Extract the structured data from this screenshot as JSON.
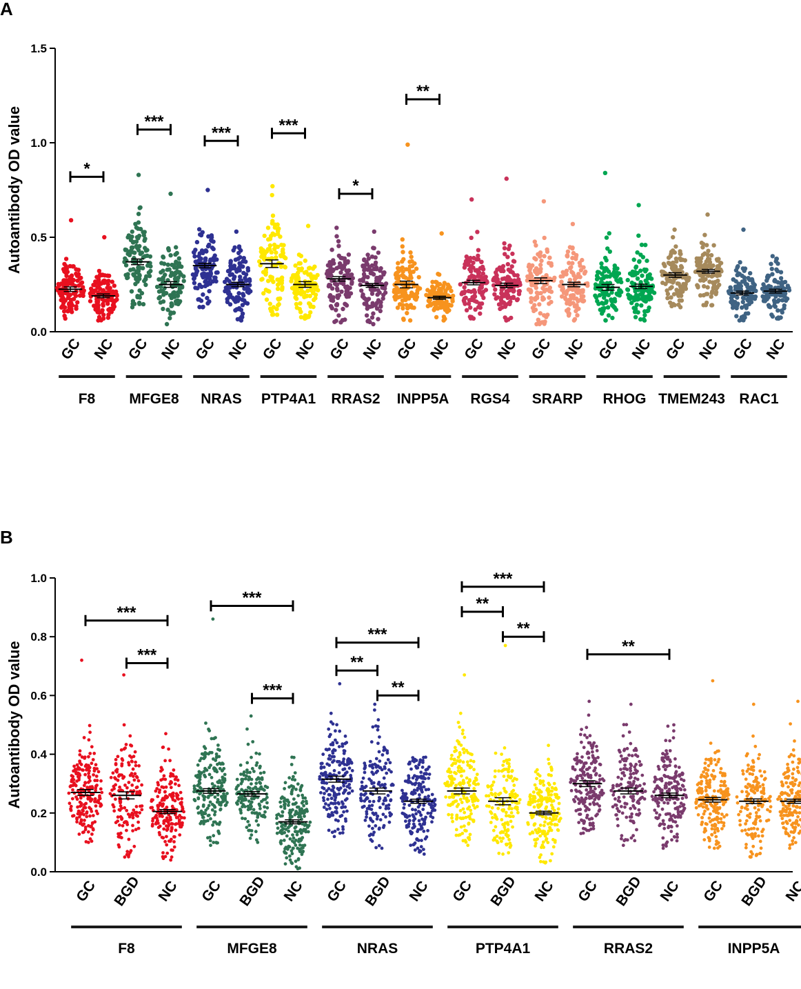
{
  "chart_data": [
    {
      "panel": "A",
      "type": "scatter",
      "subtype": "dot-plot-mean-sem",
      "ylabel": "Autoantibody OD value",
      "ylim": [
        0,
        1.5
      ],
      "yticks": [
        "0.0",
        "0.5",
        "1.0",
        "1.5"
      ],
      "group_labels": [
        "GC",
        "NC"
      ],
      "genes": [
        {
          "name": "F8",
          "color": "#e8101f",
          "groups": [
            {
              "label": "GC",
              "mean": 0.225,
              "sem": 0.012,
              "min": 0.07,
              "max": 0.59,
              "n": 110
            },
            {
              "label": "NC",
              "mean": 0.19,
              "sem": 0.01,
              "min": 0.06,
              "max": 0.5,
              "n": 110
            }
          ]
        },
        {
          "name": "MFGE8",
          "color": "#2f7453",
          "groups": [
            {
              "label": "GC",
              "mean": 0.37,
              "sem": 0.015,
              "min": 0.13,
              "max": 0.83,
              "n": 110
            },
            {
              "label": "NC",
              "mean": 0.25,
              "sem": 0.015,
              "min": 0.04,
              "max": 0.73,
              "n": 110
            }
          ]
        },
        {
          "name": "NRAS",
          "color": "#2e3192",
          "groups": [
            {
              "label": "GC",
              "mean": 0.35,
              "sem": 0.012,
              "min": 0.13,
              "max": 0.75,
              "n": 110
            },
            {
              "label": "NC",
              "mean": 0.25,
              "sem": 0.012,
              "min": 0.06,
              "max": 0.53,
              "n": 110
            }
          ]
        },
        {
          "name": "PTP4A1",
          "color": "#ffe800",
          "groups": [
            {
              "label": "GC",
              "mean": 0.36,
              "sem": 0.02,
              "min": 0.09,
              "max": 0.77,
              "n": 110
            },
            {
              "label": "NC",
              "mean": 0.25,
              "sem": 0.015,
              "min": 0.07,
              "max": 0.56,
              "n": 110
            }
          ]
        },
        {
          "name": "RRAS2",
          "color": "#7a3b6d",
          "groups": [
            {
              "label": "GC",
              "mean": 0.28,
              "sem": 0.012,
              "min": 0.05,
              "max": 0.55,
              "n": 110
            },
            {
              "label": "NC",
              "mean": 0.245,
              "sem": 0.01,
              "min": 0.04,
              "max": 0.53,
              "n": 110
            }
          ]
        },
        {
          "name": "INPP5A",
          "color": "#f7931e",
          "groups": [
            {
              "label": "GC",
              "mean": 0.25,
              "sem": 0.018,
              "min": 0.06,
              "max": 0.99,
              "n": 110
            },
            {
              "label": "NC",
              "mean": 0.18,
              "sem": 0.008,
              "min": 0.06,
              "max": 0.52,
              "n": 110
            }
          ]
        },
        {
          "name": "RGS4",
          "color": "#c9325a",
          "groups": [
            {
              "label": "GC",
              "mean": 0.26,
              "sem": 0.012,
              "min": 0.07,
              "max": 0.7,
              "n": 110
            },
            {
              "label": "NC",
              "mean": 0.245,
              "sem": 0.012,
              "min": 0.06,
              "max": 0.81,
              "n": 110
            }
          ]
        },
        {
          "name": "SRARP",
          "color": "#f5977a",
          "groups": [
            {
              "label": "GC",
              "mean": 0.27,
              "sem": 0.015,
              "min": 0.04,
              "max": 0.69,
              "n": 110
            },
            {
              "label": "NC",
              "mean": 0.25,
              "sem": 0.012,
              "min": 0.06,
              "max": 0.57,
              "n": 110
            }
          ]
        },
        {
          "name": "RHOG",
          "color": "#00a651",
          "groups": [
            {
              "label": "GC",
              "mean": 0.235,
              "sem": 0.015,
              "min": 0.06,
              "max": 0.84,
              "n": 110
            },
            {
              "label": "NC",
              "mean": 0.24,
              "sem": 0.012,
              "min": 0.06,
              "max": 0.67,
              "n": 110
            }
          ]
        },
        {
          "name": "TMEM243",
          "color": "#a68a5c",
          "groups": [
            {
              "label": "GC",
              "mean": 0.3,
              "sem": 0.012,
              "min": 0.13,
              "max": 0.54,
              "n": 110
            },
            {
              "label": "NC",
              "mean": 0.32,
              "sem": 0.01,
              "min": 0.14,
              "max": 0.62,
              "n": 110
            }
          ]
        },
        {
          "name": "RAC1",
          "color": "#3f6383",
          "groups": [
            {
              "label": "GC",
              "mean": 0.205,
              "sem": 0.01,
              "min": 0.06,
              "max": 0.54,
              "n": 110
            },
            {
              "label": "NC",
              "mean": 0.215,
              "sem": 0.01,
              "min": 0.07,
              "max": 0.4,
              "n": 110
            }
          ]
        }
      ],
      "comparisons": [
        {
          "gene": "F8",
          "from": "GC",
          "to": "NC",
          "y": 0.82,
          "label": "*"
        },
        {
          "gene": "MFGE8",
          "from": "GC",
          "to": "NC",
          "y": 1.07,
          "label": "***"
        },
        {
          "gene": "NRAS",
          "from": "GC",
          "to": "NC",
          "y": 1.01,
          "label": "***"
        },
        {
          "gene": "PTP4A1",
          "from": "GC",
          "to": "NC",
          "y": 1.05,
          "label": "***"
        },
        {
          "gene": "RRAS2",
          "from": "GC",
          "to": "NC",
          "y": 0.73,
          "label": "*"
        },
        {
          "gene": "INPP5A",
          "from": "GC",
          "to": "NC",
          "y": 1.23,
          "label": "**"
        }
      ]
    },
    {
      "panel": "B",
      "type": "scatter",
      "subtype": "dot-plot-mean-sem",
      "ylabel": "Autoantibody OD value",
      "ylim": [
        0,
        1.0
      ],
      "yticks": [
        "0.0",
        "0.2",
        "0.4",
        "0.6",
        "0.8",
        "1.0"
      ],
      "group_labels": [
        "GC",
        "BGD",
        "NC"
      ],
      "genes": [
        {
          "name": "F8",
          "color": "#e8101f",
          "groups": [
            {
              "label": "GC",
              "mean": 0.27,
              "sem": 0.01,
              "min": 0.1,
              "max": 0.72,
              "n": 200
            },
            {
              "label": "BGD",
              "mean": 0.26,
              "sem": 0.012,
              "min": 0.05,
              "max": 0.67,
              "n": 150
            },
            {
              "label": "NC",
              "mean": 0.205,
              "sem": 0.007,
              "min": 0.04,
              "max": 0.47,
              "n": 200
            }
          ]
        },
        {
          "name": "MFGE8",
          "color": "#2f7453",
          "groups": [
            {
              "label": "GC",
              "mean": 0.275,
              "sem": 0.008,
              "min": 0.09,
              "max": 0.86,
              "n": 200
            },
            {
              "label": "BGD",
              "mean": 0.265,
              "sem": 0.008,
              "min": 0.1,
              "max": 0.53,
              "n": 150
            },
            {
              "label": "NC",
              "mean": 0.17,
              "sem": 0.007,
              "min": 0.01,
              "max": 0.39,
              "n": 200
            }
          ]
        },
        {
          "name": "NRAS",
          "color": "#2e3192",
          "groups": [
            {
              "label": "GC",
              "mean": 0.315,
              "sem": 0.01,
              "min": 0.12,
              "max": 0.64,
              "n": 200
            },
            {
              "label": "BGD",
              "mean": 0.275,
              "sem": 0.01,
              "min": 0.08,
              "max": 0.57,
              "n": 150
            },
            {
              "label": "NC",
              "mean": 0.24,
              "sem": 0.007,
              "min": 0.06,
              "max": 0.39,
              "n": 200
            }
          ]
        },
        {
          "name": "PTP4A1",
          "color": "#ffe800",
          "groups": [
            {
              "label": "GC",
              "mean": 0.275,
              "sem": 0.01,
              "min": 0.09,
              "max": 0.67,
              "n": 200
            },
            {
              "label": "BGD",
              "mean": 0.24,
              "sem": 0.012,
              "min": 0.06,
              "max": 0.77,
              "n": 150
            },
            {
              "label": "NC",
              "mean": 0.2,
              "sem": 0.006,
              "min": 0.03,
              "max": 0.43,
              "n": 200
            }
          ]
        },
        {
          "name": "RRAS2",
          "color": "#7a3b6d",
          "groups": [
            {
              "label": "GC",
              "mean": 0.3,
              "sem": 0.01,
              "min": 0.13,
              "max": 0.58,
              "n": 200
            },
            {
              "label": "BGD",
              "mean": 0.275,
              "sem": 0.01,
              "min": 0.09,
              "max": 0.57,
              "n": 150
            },
            {
              "label": "NC",
              "mean": 0.26,
              "sem": 0.008,
              "min": 0.08,
              "max": 0.5,
              "n": 200
            }
          ]
        },
        {
          "name": "INPP5A",
          "color": "#f7931e",
          "groups": [
            {
              "label": "GC",
              "mean": 0.245,
              "sem": 0.008,
              "min": 0.08,
              "max": 0.65,
              "n": 200
            },
            {
              "label": "BGD",
              "mean": 0.24,
              "sem": 0.008,
              "min": 0.05,
              "max": 0.57,
              "n": 150
            },
            {
              "label": "NC",
              "mean": 0.24,
              "sem": 0.007,
              "min": 0.08,
              "max": 0.58,
              "n": 200
            }
          ]
        }
      ],
      "comparisons": [
        {
          "gene": "F8",
          "from": "GC",
          "to": "NC",
          "y": 0.855,
          "label": "***"
        },
        {
          "gene": "F8",
          "from": "BGD",
          "to": "NC",
          "y": 0.71,
          "label": "***"
        },
        {
          "gene": "MFGE8",
          "from": "GC",
          "to": "NC",
          "y": 0.905,
          "label": "***"
        },
        {
          "gene": "MFGE8",
          "from": "BGD",
          "to": "NC",
          "y": 0.59,
          "label": "***"
        },
        {
          "gene": "NRAS",
          "from": "GC",
          "to": "NC",
          "y": 0.78,
          "label": "***"
        },
        {
          "gene": "NRAS",
          "from": "GC",
          "to": "BGD",
          "y": 0.685,
          "label": "**"
        },
        {
          "gene": "NRAS",
          "from": "BGD",
          "to": "NC",
          "y": 0.6,
          "label": "**"
        },
        {
          "gene": "PTP4A1",
          "from": "GC",
          "to": "NC",
          "y": 0.97,
          "label": "***"
        },
        {
          "gene": "PTP4A1",
          "from": "GC",
          "to": "BGD",
          "y": 0.885,
          "label": "**"
        },
        {
          "gene": "PTP4A1",
          "from": "BGD",
          "to": "NC",
          "y": 0.8,
          "label": "**"
        },
        {
          "gene": "RRAS2",
          "from": "GC",
          "to": "NC",
          "y": 0.74,
          "label": "**"
        }
      ]
    }
  ]
}
